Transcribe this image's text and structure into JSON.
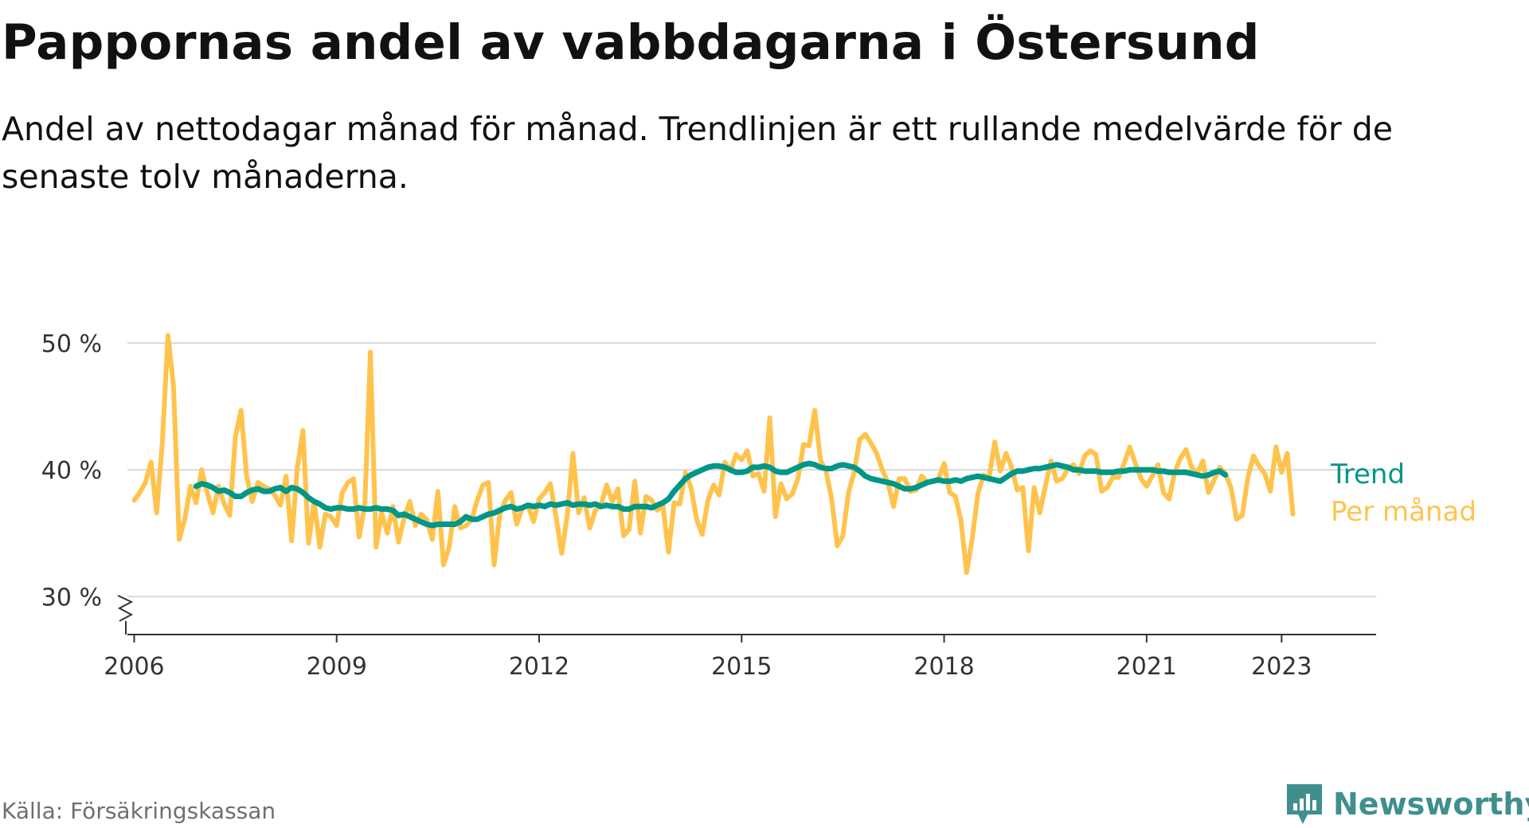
{
  "title": "Pappornas andel av vabbdagarna i Östersund",
  "subtitle": "Andel av nettodagar månad för månad. Trendlinjen är ett rullande medelvärde för de senaste tolv månaderna.",
  "source": "Källa: Försäkringskassan",
  "brand": "Newsworthy",
  "colors": {
    "monthly": "#ffc34d",
    "trend": "#009688",
    "grid": "#d9d9d9",
    "axis": "#333333",
    "brand": "#3f8f8f"
  },
  "chart_data": {
    "type": "line",
    "ylim": [
      27,
      51
    ],
    "xlim": [
      2005.9,
      2024.4
    ],
    "yticks": [
      30,
      40,
      50
    ],
    "ytick_labels": [
      "30 %",
      "40 %",
      "50 %"
    ],
    "xticks": [
      2006,
      2009,
      2012,
      2015,
      2018,
      2021,
      2023
    ],
    "xtick_labels": [
      "2006",
      "2009",
      "2012",
      "2015",
      "2018",
      "2021",
      "2023"
    ],
    "axis_break": true,
    "legend": {
      "trend": "Trend",
      "monthly": "Per månad"
    },
    "series": [
      {
        "name": "Per månad",
        "start": "2006-01",
        "values": [
          37.6,
          38.2,
          39,
          40.6,
          36.6,
          42.1,
          50.6,
          46.6,
          34.5,
          36.1,
          38.7,
          37.4,
          40,
          38.2,
          36.6,
          38.7,
          37.3,
          36.4,
          42.6,
          44.7,
          39.5,
          37.5,
          39,
          38.7,
          38.5,
          38,
          37.2,
          39.5,
          34.4,
          40.1,
          43.1,
          34.2,
          37.5,
          33.9,
          36.5,
          36.3,
          35.6,
          38.2,
          39,
          39.3,
          34.7,
          37.2,
          49.3,
          33.9,
          36.6,
          35,
          37.1,
          34.3,
          36.2,
          37.5,
          35.6,
          36.5,
          36.1,
          34.5,
          38.3,
          32.5,
          33.9,
          37.1,
          35.4,
          35.6,
          36.1,
          37.6,
          38.8,
          39,
          32.5,
          36.5,
          37.6,
          38.2,
          35.7,
          37,
          37.2,
          35.9,
          37.7,
          38.2,
          38.9,
          36.3,
          33.4,
          36.4,
          41.3,
          36.6,
          37.8,
          35.4,
          36.8,
          37.2,
          38.8,
          37.5,
          38.5,
          34.8,
          35.3,
          39.1,
          35,
          37.9,
          37.6,
          36.8,
          37.2,
          33.5,
          37.4,
          37.3,
          39.8,
          38.6,
          36.1,
          34.9,
          37.6,
          38.8,
          38,
          40.6,
          39.9,
          41.2,
          40.8,
          41.5,
          39.5,
          39.7,
          38.3,
          44.1,
          36.3,
          38.9,
          37.7,
          38.1,
          39.3,
          42,
          41.9,
          44.7,
          40.8,
          39.9,
          37.7,
          34,
          34.8,
          38.2,
          39.8,
          42.4,
          42.8,
          42.1,
          41.3,
          40,
          39,
          37.1,
          39.3,
          39.3,
          38.3,
          38.4,
          39.5,
          39,
          39.1,
          39.3,
          40.5,
          38.2,
          37.9,
          36,
          31.9,
          34.6,
          38.1,
          39.6,
          39.4,
          42.2,
          39.9,
          41.3,
          40.2,
          38.4,
          38.6,
          33.6,
          38.6,
          36.6,
          38.7,
          40.7,
          39.1,
          39.3,
          40.1,
          40.4,
          39.7,
          41.1,
          41.5,
          41.2,
          38.3,
          38.6,
          39.4,
          39.4,
          40.5,
          41.8,
          40.5,
          39.3,
          38.7,
          39.5,
          40.4,
          38.2,
          37.7,
          39.8,
          40.9,
          41.6,
          40.2,
          39.7,
          40.7,
          38.2,
          39.2,
          40.2,
          39.7,
          38.6,
          36.1,
          36.4,
          39.4,
          41.1,
          40.3,
          39.7,
          38.3,
          41.8,
          39.8,
          41.3,
          36.5
        ]
      },
      {
        "name": "Trend",
        "start": "2006-12",
        "values": [
          38.7,
          38.9,
          38.8,
          38.6,
          38.3,
          38.4,
          38.2,
          37.9,
          37.9,
          38.2,
          38.4,
          38.5,
          38.3,
          38.3,
          38.5,
          38.6,
          38.3,
          38.6,
          38.5,
          38.2,
          37.8,
          37.5,
          37.3,
          37,
          36.9,
          37,
          37,
          36.9,
          36.9,
          37,
          36.9,
          36.9,
          37,
          36.9,
          36.9,
          36.8,
          36.4,
          36.5,
          36.3,
          36.1,
          35.9,
          35.7,
          35.6,
          35.7,
          35.7,
          35.7,
          35.7,
          35.9,
          36.3,
          36.1,
          36.1,
          36.3,
          36.5,
          36.6,
          36.8,
          37,
          37.1,
          36.9,
          37,
          37.2,
          37.1,
          37.2,
          37.1,
          37.3,
          37.2,
          37.3,
          37.4,
          37.2,
          37.3,
          37.3,
          37.2,
          37.3,
          37.1,
          37.2,
          37.1,
          37.1,
          36.9,
          36.9,
          37.1,
          37.1,
          37.1,
          37,
          37.2,
          37.4,
          37.7,
          38.3,
          38.8,
          39.3,
          39.6,
          39.8,
          40,
          40.2,
          40.3,
          40.3,
          40.2,
          40,
          39.8,
          39.8,
          39.9,
          40.2,
          40.2,
          40.3,
          40.2,
          39.9,
          39.8,
          39.8,
          40,
          40.2,
          40.4,
          40.5,
          40.4,
          40.2,
          40.1,
          40.1,
          40.3,
          40.4,
          40.3,
          40.2,
          39.9,
          39.5,
          39.3,
          39.2,
          39.1,
          39,
          38.9,
          38.7,
          38.5,
          38.5,
          38.6,
          38.8,
          39,
          39.1,
          39.2,
          39.1,
          39.1,
          39.2,
          39.1,
          39.3,
          39.4,
          39.5,
          39.4,
          39.3,
          39.2,
          39.1,
          39.4,
          39.7,
          39.9,
          39.9,
          40,
          40.1,
          40.1,
          40.2,
          40.3,
          40.4,
          40.3,
          40.2,
          40,
          40,
          39.9,
          39.9,
          39.9,
          39.8,
          39.8,
          39.8,
          39.9,
          39.9,
          40,
          40,
          40,
          40,
          40,
          39.9,
          39.9,
          39.8,
          39.8,
          39.8,
          39.8,
          39.7,
          39.6,
          39.5,
          39.6,
          39.8,
          39.9,
          39.6
        ]
      }
    ]
  }
}
